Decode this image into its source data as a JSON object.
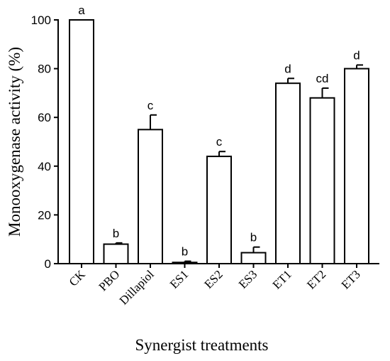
{
  "chart_data": {
    "type": "bar",
    "categories": [
      "CK",
      "PBO",
      "Dillapiol",
      "ES1",
      "ES2",
      "ES3",
      "ET1",
      "ET2",
      "ET3"
    ],
    "series": [
      {
        "values": [
          100,
          8,
          55,
          0.5,
          44,
          4.5,
          74,
          68,
          80
        ],
        "error": [
          0,
          0.5,
          6,
          0.5,
          2,
          2.3,
          2,
          4,
          1.5
        ],
        "significance": [
          "a",
          "b",
          "c",
          "b",
          "c",
          "b",
          "d",
          "cd",
          "d"
        ]
      }
    ],
    "xlabel": "Synergist treatments",
    "ylabel": "Monooxygenase activity (%)",
    "ylim": [
      0,
      100
    ],
    "yticks": [
      0,
      20,
      40,
      60,
      80,
      100
    ],
    "grid": false,
    "legend": "none",
    "bar_color": "#ffffff",
    "edge_color": "#000000"
  }
}
